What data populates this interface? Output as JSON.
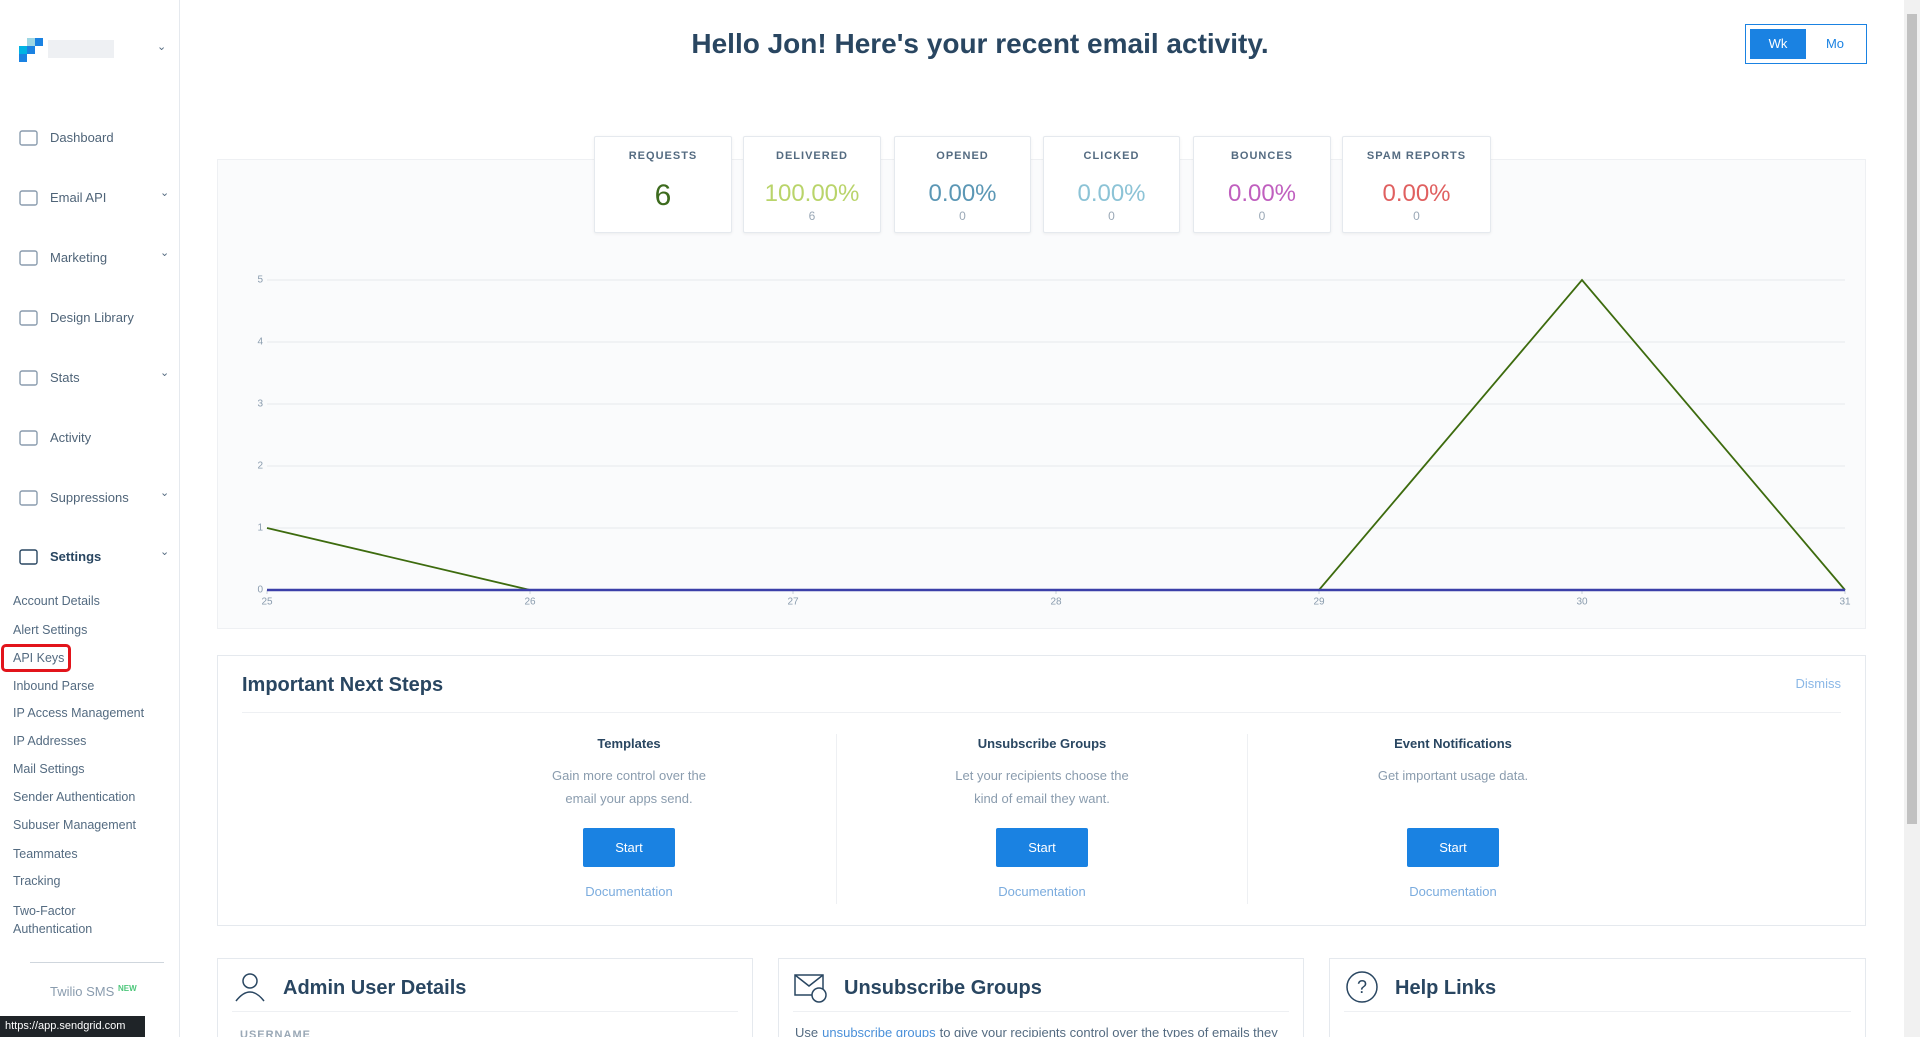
{
  "sidebar": {
    "nav": [
      "Dashboard",
      "Email API",
      "Marketing",
      "Design Library",
      "Stats",
      "Activity",
      "Suppressions",
      "Settings"
    ],
    "settings_items": [
      "Account Details",
      "Alert Settings",
      "API Keys",
      "Inbound Parse",
      "IP Access Management",
      "IP Addresses",
      "Mail Settings",
      "Sender Authentication",
      "Subuser Management",
      "Teammates",
      "Tracking",
      "Two-Factor Authentication"
    ],
    "twilio": "Twilio SMS",
    "new_badge": "NEW"
  },
  "header": {
    "title": "Hello Jon! Here's your recent email activity.",
    "toggle": [
      "Wk",
      "Mo"
    ]
  },
  "stats": [
    {
      "label": "REQUESTS",
      "value": "6",
      "color": "#3d6b1e"
    },
    {
      "label": "DELIVERED",
      "value": "100.00%",
      "sub": "6",
      "color": "#b9d46a"
    },
    {
      "label": "OPENED",
      "value": "0.00%",
      "sub": "0",
      "color": "#5b97b5"
    },
    {
      "label": "CLICKED",
      "value": "0.00%",
      "sub": "0",
      "color": "#8cc3d6"
    },
    {
      "label": "BOUNCES",
      "value": "0.00%",
      "sub": "0",
      "color": "#c05fbf"
    },
    {
      "label": "SPAM REPORTS",
      "value": "0.00%",
      "sub": "0",
      "color": "#e06060"
    }
  ],
  "chart_data": {
    "type": "line",
    "x": [
      25,
      26,
      27,
      28,
      29,
      30,
      31
    ],
    "xlim": [
      25,
      31
    ],
    "xticks": [
      25,
      26,
      27,
      28,
      29,
      30,
      31
    ],
    "ylim": [
      0,
      5
    ],
    "yticks": [
      0,
      1,
      2,
      3,
      4,
      5
    ],
    "grid": true,
    "series": [
      {
        "color": "#3d6b0e",
        "values": [
          1,
          0,
          0,
          0,
          0,
          5,
          0
        ]
      },
      {
        "color": "#3b3fa8",
        "values": [
          0,
          0,
          0,
          0,
          0,
          0,
          0
        ]
      }
    ]
  },
  "next_steps": {
    "title": "Important Next Steps",
    "dismiss": "Dismiss",
    "items": [
      {
        "title": "Templates",
        "description": [
          "Gain more control over the",
          "email your apps send."
        ],
        "button": "Start",
        "link": "Documentation"
      },
      {
        "title": "Unsubscribe Groups",
        "description": [
          "Let your recipients choose the",
          "kind of email they want."
        ],
        "button": "Start",
        "link": "Documentation"
      },
      {
        "title": "Event Notifications",
        "description": [
          "Get important usage data."
        ],
        "button": "Start",
        "link": "Documentation"
      }
    ]
  },
  "cards": [
    {
      "title": "Admin User Details",
      "text": "USERNAME"
    },
    {
      "title": "Unsubscribe Groups",
      "text_before": "Use",
      "link": "unsubscribe groups",
      "text_after": "to give your recipients control over the types of emails they"
    },
    {
      "title": "Help Links"
    }
  ],
  "status_url": "https://app.sendgrid.com"
}
